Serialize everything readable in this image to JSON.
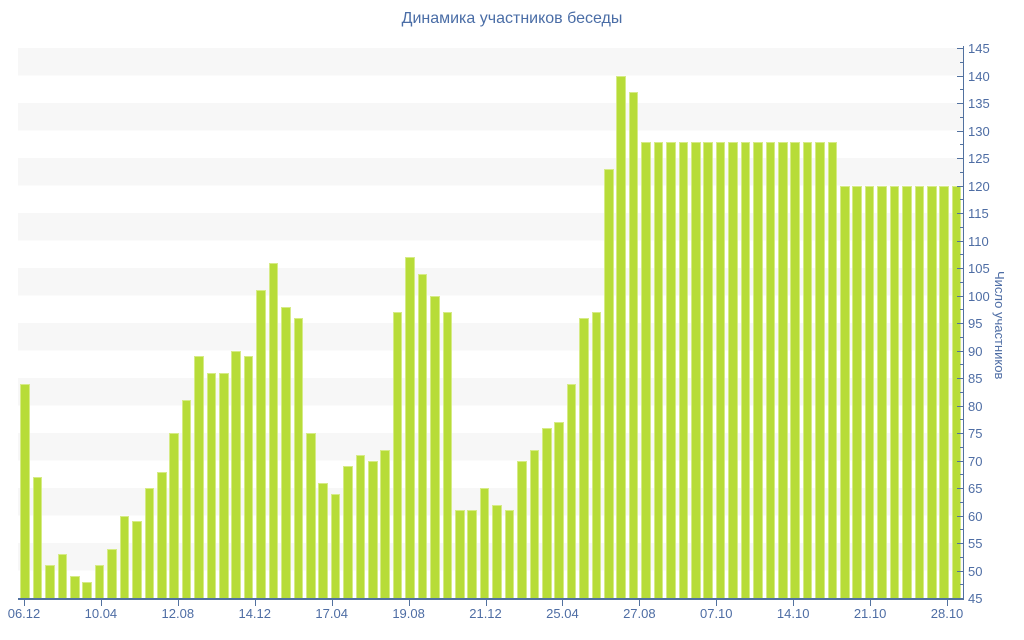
{
  "chart_data": {
    "type": "bar",
    "title": "Динамика участников беседы",
    "ylabel": "Число участников",
    "xlabel": "",
    "ylim": [
      45,
      145
    ],
    "ytick_step": 5,
    "y_tick_labels": [
      "45",
      "50",
      "55",
      "60",
      "65",
      "70",
      "75",
      "80",
      "85",
      "90",
      "95",
      "100",
      "105",
      "110",
      "115",
      "120",
      "125",
      "130",
      "135",
      "140",
      "145"
    ],
    "x_tick_labels": [
      "06.12",
      "10.04",
      "12.08",
      "14.12",
      "17.04",
      "19.08",
      "21.12",
      "25.04",
      "27.08",
      "07.10",
      "14.10",
      "21.10",
      "28.10"
    ],
    "legend": "none",
    "grid": "alternating horizontal bands every 5 units",
    "values": [
      84,
      67,
      51,
      53,
      49,
      48,
      51,
      54,
      60,
      59,
      65,
      68,
      75,
      81,
      89,
      86,
      86,
      90,
      89,
      101,
      106,
      98,
      96,
      75,
      66,
      64,
      69,
      71,
      70,
      72,
      97,
      107,
      104,
      100,
      97,
      61,
      61,
      65,
      62,
      61,
      70,
      72,
      76,
      77,
      84,
      96,
      97,
      123,
      140,
      137,
      128,
      128,
      128,
      128,
      128,
      128,
      128,
      128,
      128,
      128,
      128,
      128,
      128,
      128,
      128,
      128,
      120,
      120,
      120,
      120,
      120,
      120,
      120,
      120,
      120,
      120
    ]
  },
  "colors": {
    "bar_fill": "#b7dc38",
    "bar_edge": "#d6eb87",
    "axis_line": "#52719f",
    "label_text": "#4e6da4",
    "title_text": "#4a6da6",
    "stripe_band": "#f7f7f7",
    "background": "#ffffff"
  }
}
